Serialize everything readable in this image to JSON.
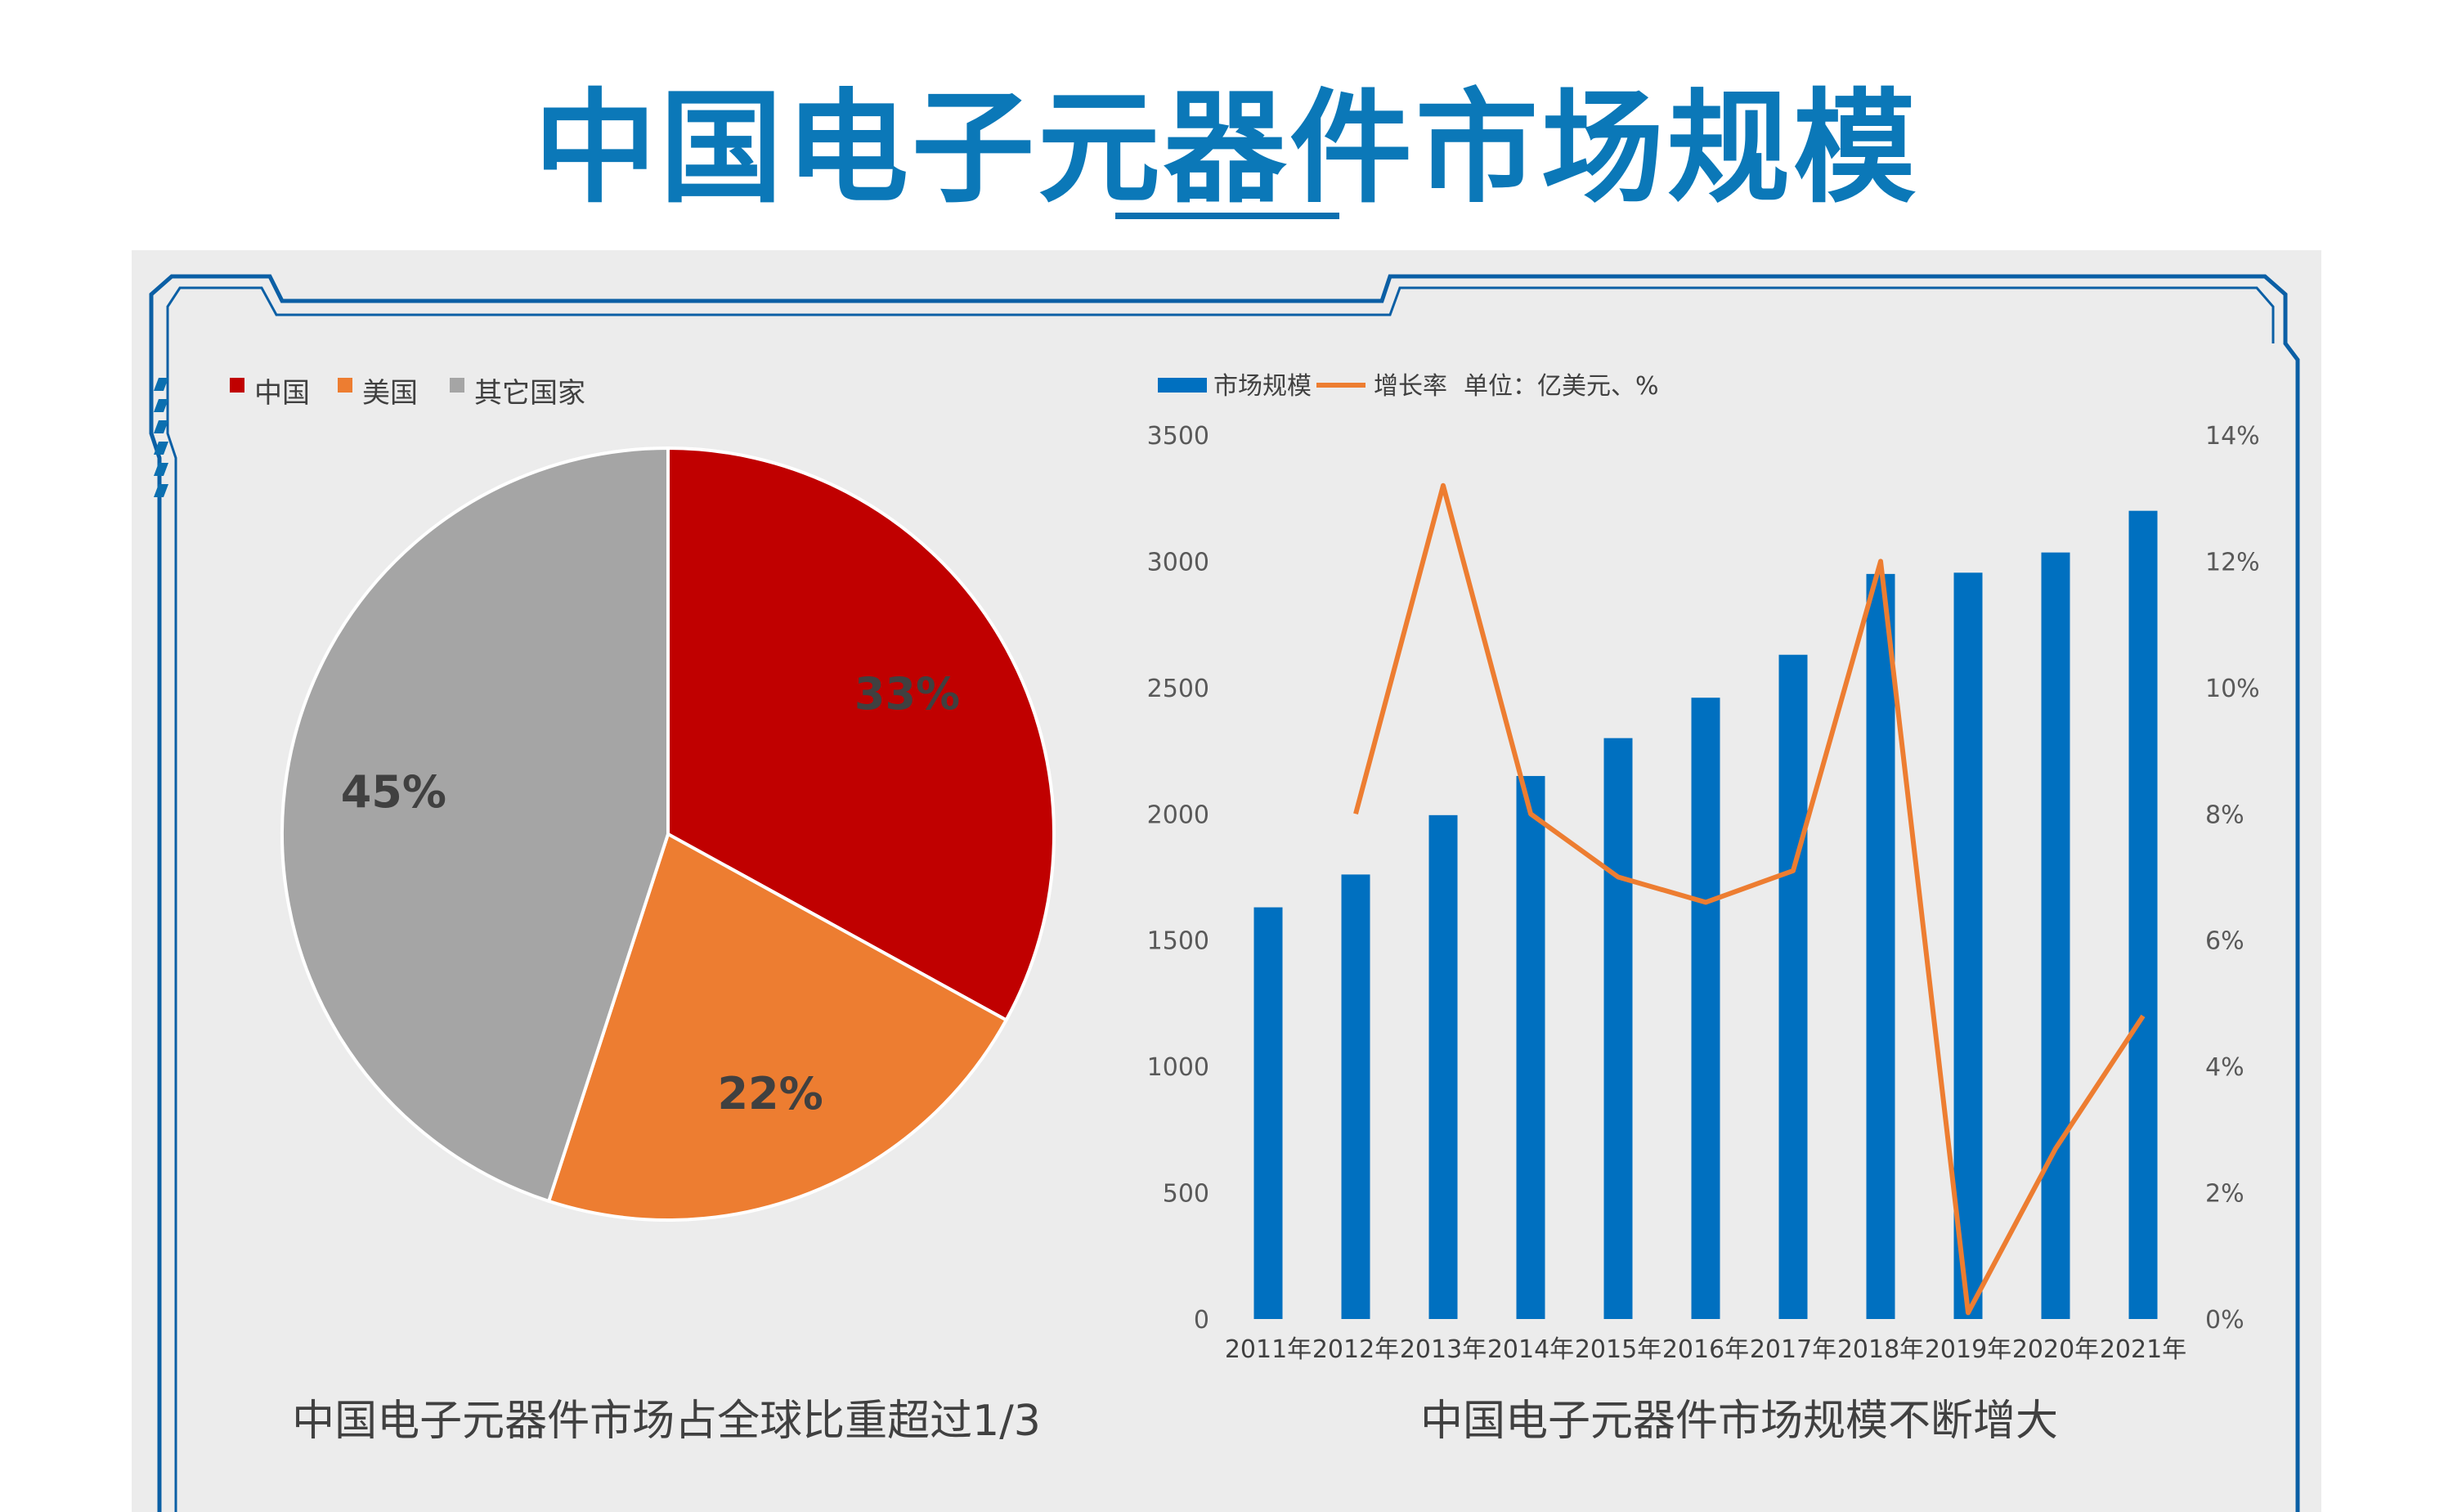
{
  "title": "中国电子元器件市场规模",
  "chart_data": [
    {
      "type": "pie",
      "legend": [
        "中国",
        "美国",
        "其它国家"
      ],
      "legend_position": "top-left",
      "values": [
        33,
        22,
        45
      ],
      "labels": [
        "33%",
        "22%",
        "45%"
      ],
      "colors": [
        "#c00000",
        "#ed7d31",
        "#a5a5a5"
      ],
      "caption": "中国电子元器件市场占全球比重超过1/3"
    },
    {
      "type": "bar",
      "categories": [
        "2011年",
        "2012年",
        "2013年",
        "2014年",
        "2015年",
        "2016年",
        "2017年",
        "2018年",
        "2019年",
        "2020年",
        "2021年"
      ],
      "series": [
        {
          "name": "市场规模",
          "type": "bar",
          "axis": "left",
          "color": "#0070c0",
          "values": [
            1630,
            1760,
            1995,
            2150,
            2300,
            2460,
            2630,
            2950,
            2955,
            3035,
            3200
          ]
        },
        {
          "name": "增长率",
          "type": "line",
          "axis": "right",
          "color": "#ed7d31",
          "values": [
            null,
            8.0,
            13.2,
            8.0,
            7.0,
            6.6,
            7.1,
            12.0,
            0.1,
            2.7,
            4.8
          ]
        }
      ],
      "unit_note": "单位：亿美元、%",
      "ylim": [
        0,
        3500
      ],
      "yticks": [
        "0",
        "500",
        "1000",
        "1500",
        "2000",
        "2500",
        "3000",
        "3500"
      ],
      "y2lim": [
        0,
        14
      ],
      "y2ticks": [
        "0%",
        "2%",
        "4%",
        "6%",
        "8%",
        "10%",
        "12%",
        "14%"
      ],
      "legend_position": "top",
      "grid": false,
      "caption": "中国电子元器件市场规模不断增大"
    }
  ]
}
